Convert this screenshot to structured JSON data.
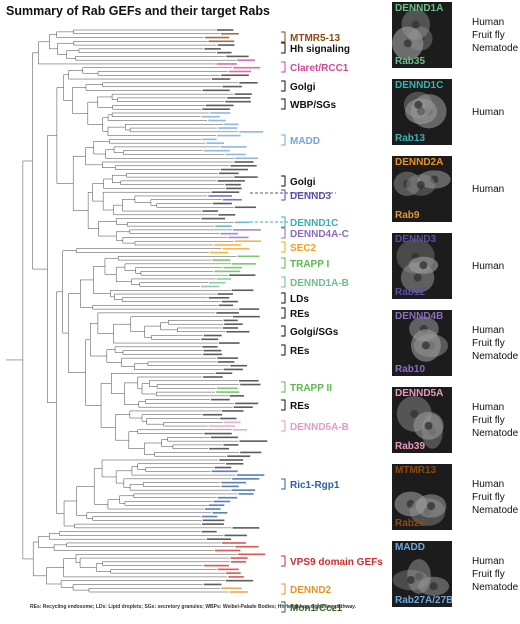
{
  "title": "Summary of Rab GEFs and their target Rabs",
  "note": "REs: Recycling endosome; LDs: Lipid droplets; SGs: secretory granules; WBPs: Weibel-Palade Bodies; HhHedgehog signalling pathway.",
  "families": [
    {
      "label": "MTMR5-13",
      "color": "#8a4a14"
    },
    {
      "label": "Hh signaling",
      "color": "#111111"
    },
    {
      "label": "Claret/RCC1",
      "color": "#d6449a"
    },
    {
      "label": "Golgi",
      "color": "#111111"
    },
    {
      "label": "WBP/SGs",
      "color": "#111111"
    },
    {
      "label": "MADD",
      "color": "#6fa6dc"
    },
    {
      "label": "Golgi",
      "color": "#111111"
    },
    {
      "label": "DENND3",
      "color": "#5a4fa8"
    },
    {
      "label": "DENND1C",
      "color": "#3ab0b0"
    },
    {
      "label": "DENND4A-C",
      "color": "#8a6cc0"
    },
    {
      "label": "SEC2",
      "color": "#f2a31c"
    },
    {
      "label": "TRAPP I",
      "color": "#5cb84c"
    },
    {
      "label": "DENND1A-B",
      "color": "#6cc08a"
    },
    {
      "label": "LDs",
      "color": "#111111"
    },
    {
      "label": "REs",
      "color": "#111111"
    },
    {
      "label": "Golgi/SGs",
      "color": "#111111"
    },
    {
      "label": "REs",
      "color": "#111111"
    },
    {
      "label": "TRAPP II",
      "color": "#5cb84c"
    },
    {
      "label": "REs",
      "color": "#111111"
    },
    {
      "label": "DENND5A-B",
      "color": "#e79ac0"
    },
    {
      "label": "Ric1-Rgp1",
      "color": "#2d5fa8"
    },
    {
      "label": "VPS9 domain GEFs",
      "color": "#d42a2a"
    },
    {
      "label": "DENND2",
      "color": "#e6942a"
    },
    {
      "label": "Mon1/Ccz1",
      "color": "#3e6a22"
    }
  ],
  "panels": [
    {
      "gene": "DENND1A",
      "gene_color": "#6cc08a",
      "rab": "Rab35",
      "rab_color": "#6cc08a",
      "species": [
        "Human",
        "Fruit fly",
        "Nematode"
      ]
    },
    {
      "gene": "DENND1C",
      "gene_color": "#3ab0b0",
      "rab": "Rab13",
      "rab_color": "#3ab0b0",
      "species": [
        "Human"
      ]
    },
    {
      "gene": "DENND2A",
      "gene_color": "#e6942a",
      "rab": "Rab9",
      "rab_color": "#e6942a",
      "species": [
        "Human"
      ]
    },
    {
      "gene": "DENND3",
      "gene_color": "#5a4fa8",
      "rab": "Rab12",
      "rab_color": "#5a4fa8",
      "species": [
        "Human"
      ]
    },
    {
      "gene": "DENND4B",
      "gene_color": "#8a6cc0",
      "rab": "Rab10",
      "rab_color": "#8a6cc0",
      "species": [
        "Human",
        "Fruit fly",
        "Nematode"
      ]
    },
    {
      "gene": "DENND5A",
      "gene_color": "#e79ac0",
      "rab": "Rab39",
      "rab_color": "#e79ac0",
      "species": [
        "Human",
        "Fruit fly",
        "Nematode"
      ]
    },
    {
      "gene": "MTMR13",
      "gene_color": "#8a4a14",
      "rab": "Rab28",
      "rab_color": "#8a4a14",
      "species": [
        "Human",
        "Fruit fly",
        "Nematode"
      ]
    },
    {
      "gene": "MADD",
      "gene_color": "#6fa6dc",
      "rab": "Rab27A/27B",
      "rab_color": "#6fa6dc",
      "species": [
        "Human",
        "Fruit fly",
        "Nematode"
      ]
    }
  ],
  "colors": {
    "dark": "#111111",
    "panel_bg": "#1c1c1c"
  }
}
